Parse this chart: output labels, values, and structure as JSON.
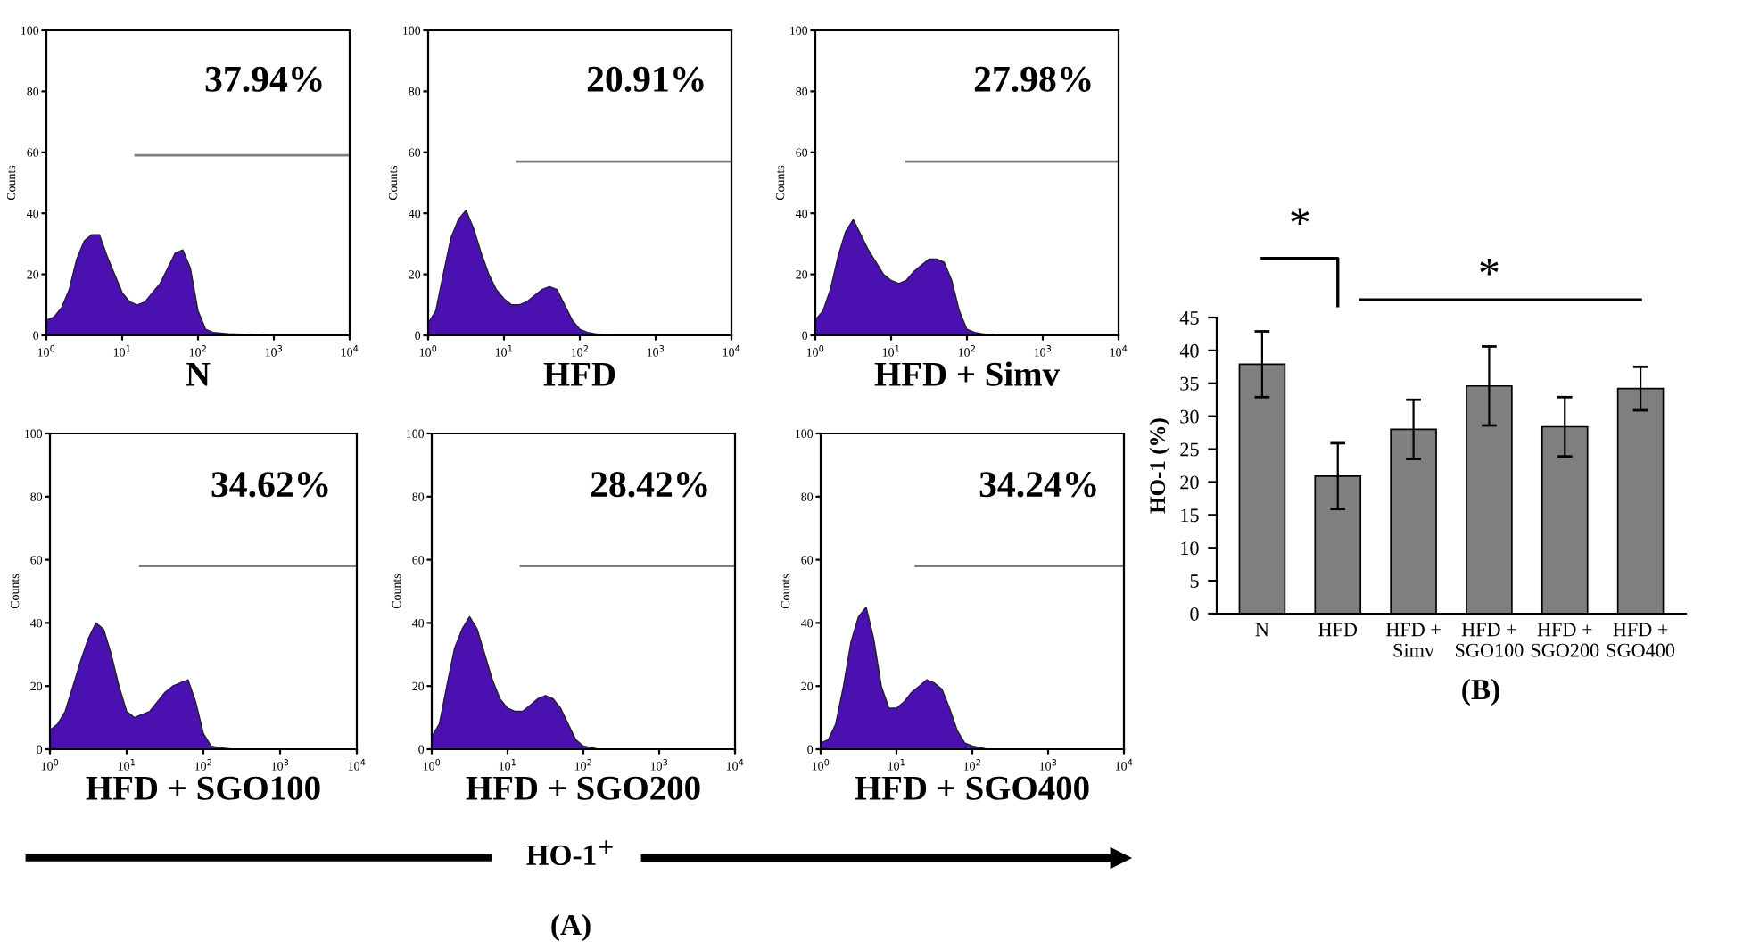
{
  "chart_data": [
    {
      "type": "area",
      "xlabel": "N",
      "ylabel": "Counts",
      "log": "x",
      "xlim": [
        1,
        10000
      ],
      "ylim": [
        0,
        100
      ],
      "xticks": [
        {
          "value": 1,
          "label": "10$^{0}$"
        },
        {
          "value": 10,
          "label": "10$^{1}$"
        },
        {
          "value": 100,
          "label": "10$^{2}$"
        },
        {
          "value": 1000,
          "label": "10$^{3}$"
        },
        {
          "value": 10000,
          "label": "10$^{4}$"
        }
      ],
      "yticks": [
        0,
        20,
        40,
        60,
        80,
        100
      ],
      "annotations": [
        "37.94%"
      ],
      "series": [
        {
          "color": "#4a10b0",
          "x": [
            1,
            1.26,
            1.58,
            2,
            2.51,
            3.16,
            3.98,
            5.01,
            6.31,
            7.94,
            10,
            12.6,
            15.8,
            20,
            25.1,
            31.6,
            39.8,
            50.1,
            63.1,
            79.4,
            100,
            126,
            158,
            251,
            1000,
            10000
          ],
          "values": [
            5,
            6,
            9,
            15,
            25,
            31,
            33,
            33,
            26,
            20,
            14,
            11,
            10,
            11,
            14,
            17,
            22,
            27,
            28,
            22,
            8,
            2,
            1,
            0.5,
            0,
            0
          ]
        },
        {
          "type": "line",
          "color": "#808080",
          "x": [
            15,
            10000
          ],
          "values": [
            59,
            59
          ]
        }
      ]
    },
    {
      "type": "area",
      "xlabel": "HFD",
      "ylabel": "Counts",
      "log": "x",
      "xlim": [
        1,
        10000
      ],
      "ylim": [
        0,
        100
      ],
      "xticks": [
        {
          "value": 1,
          "label": "10$^{0}$"
        },
        {
          "value": 10,
          "label": "10$^{1}$"
        },
        {
          "value": 100,
          "label": "10$^{2}$"
        },
        {
          "value": 1000,
          "label": "10$^{3}$"
        },
        {
          "value": 10000,
          "label": "10$^{4}$"
        }
      ],
      "yticks": [
        0,
        20,
        40,
        60,
        80,
        100
      ],
      "annotations": [
        "20.91%"
      ],
      "series": [
        {
          "color": "#4a10b0",
          "x": [
            1,
            1.26,
            1.58,
            2,
            2.51,
            3.16,
            3.98,
            5.01,
            6.31,
            7.94,
            10,
            12.6,
            15.8,
            20,
            25.1,
            31.6,
            39.8,
            50.1,
            63.1,
            79.4,
            100,
            126,
            158,
            251,
            1000,
            10000
          ],
          "values": [
            4,
            8,
            20,
            32,
            38,
            41,
            35,
            27,
            20,
            15,
            12,
            10,
            10,
            11,
            13,
            15,
            16,
            15,
            10,
            5,
            2,
            1,
            0.5,
            0,
            0,
            0
          ]
        },
        {
          "type": "line",
          "color": "#808080",
          "x": [
            15,
            10000
          ],
          "values": [
            57,
            57
          ]
        }
      ]
    },
    {
      "type": "area",
      "xlabel": "HFD + Simv",
      "ylabel": "Counts",
      "log": "x",
      "xlim": [
        1,
        10000
      ],
      "ylim": [
        0,
        100
      ],
      "xticks": [
        {
          "value": 1,
          "label": "10$^{0}$"
        },
        {
          "value": 10,
          "label": "10$^{1}$"
        },
        {
          "value": 100,
          "label": "10$^{2}$"
        },
        {
          "value": 1000,
          "label": "10$^{3}$"
        },
        {
          "value": 10000,
          "label": "10$^{4}$"
        }
      ],
      "yticks": [
        0,
        20,
        40,
        60,
        80,
        100
      ],
      "annotations": [
        "27.98%"
      ],
      "series": [
        {
          "color": "#4a10b0",
          "x": [
            1,
            1.26,
            1.58,
            2,
            2.51,
            3.16,
            3.98,
            5.01,
            6.31,
            7.94,
            10,
            12.6,
            15.8,
            20,
            25.1,
            31.6,
            39.8,
            50.1,
            63.1,
            79.4,
            100,
            126,
            158,
            251,
            1000,
            10000
          ],
          "values": [
            5,
            8,
            15,
            26,
            34,
            38,
            33,
            28,
            24,
            20,
            18,
            17,
            18,
            21,
            23,
            25,
            25,
            24,
            18,
            8,
            2,
            1,
            0.5,
            0,
            0,
            0
          ]
        },
        {
          "type": "line",
          "color": "#808080",
          "x": [
            16,
            10000
          ],
          "values": [
            57,
            57
          ]
        }
      ]
    },
    {
      "type": "area",
      "xlabel": "HFD + SGO100",
      "ylabel": "Counts",
      "log": "x",
      "xlim": [
        1,
        10000
      ],
      "ylim": [
        0,
        100
      ],
      "xticks": [
        {
          "value": 1,
          "label": "10$^{0}$"
        },
        {
          "value": 10,
          "label": "10$^{1}$"
        },
        {
          "value": 100,
          "label": "10$^{2}$"
        },
        {
          "value": 1000,
          "label": "10$^{3}$"
        },
        {
          "value": 10000,
          "label": "10$^{4}$"
        }
      ],
      "yticks": [
        0,
        20,
        40,
        60,
        80,
        100
      ],
      "annotations": [
        "34.62%"
      ],
      "series": [
        {
          "color": "#4a10b0",
          "x": [
            1,
            1.26,
            1.58,
            2,
            2.51,
            3.16,
            3.98,
            5.01,
            6.31,
            7.94,
            10,
            12.6,
            15.8,
            20,
            25.1,
            31.6,
            39.8,
            50.1,
            63.1,
            79.4,
            100,
            126,
            158,
            251,
            1000,
            10000
          ],
          "values": [
            6,
            8,
            12,
            20,
            28,
            35,
            40,
            38,
            30,
            20,
            12,
            10,
            11,
            12,
            15,
            18,
            20,
            21,
            22,
            15,
            5,
            1,
            0.5,
            0,
            0,
            0
          ]
        },
        {
          "type": "line",
          "color": "#808080",
          "x": [
            15,
            10000
          ],
          "values": [
            58,
            58
          ]
        }
      ]
    },
    {
      "type": "area",
      "xlabel": "HFD + SGO200",
      "ylabel": "Counts",
      "log": "x",
      "xlim": [
        1,
        10000
      ],
      "ylim": [
        0,
        100
      ],
      "xticks": [
        {
          "value": 1,
          "label": "10$^{0}$"
        },
        {
          "value": 10,
          "label": "10$^{1}$"
        },
        {
          "value": 100,
          "label": "10$^{2}$"
        },
        {
          "value": 1000,
          "label": "10$^{3}$"
        },
        {
          "value": 10000,
          "label": "10$^{4}$"
        }
      ],
      "yticks": [
        0,
        20,
        40,
        60,
        80,
        100
      ],
      "annotations": [
        "28.42%"
      ],
      "series": [
        {
          "color": "#4a10b0",
          "x": [
            1,
            1.26,
            1.58,
            2,
            2.51,
            3.16,
            3.98,
            5.01,
            6.31,
            7.94,
            10,
            12.6,
            15.8,
            20,
            25.1,
            31.6,
            39.8,
            50.1,
            63.1,
            79.4,
            100,
            126,
            158,
            251,
            1000,
            10000
          ],
          "values": [
            4,
            8,
            20,
            32,
            38,
            42,
            38,
            30,
            22,
            16,
            13,
            12,
            12,
            14,
            16,
            17,
            16,
            13,
            8,
            3,
            1,
            0.5,
            0,
            0,
            0,
            0
          ]
        },
        {
          "type": "line",
          "color": "#808080",
          "x": [
            15,
            10000
          ],
          "values": [
            58,
            58
          ]
        }
      ]
    },
    {
      "type": "area",
      "xlabel": "HFD + SGO400",
      "ylabel": "Counts",
      "log": "x",
      "xlim": [
        1,
        10000
      ],
      "ylim": [
        0,
        100
      ],
      "xticks": [
        {
          "value": 1,
          "label": "10$^{0}$"
        },
        {
          "value": 10,
          "label": "10$^{1}$"
        },
        {
          "value": 100,
          "label": "10$^{2}$"
        },
        {
          "value": 1000,
          "label": "10$^{3}$"
        },
        {
          "value": 10000,
          "label": "10$^{4}$"
        }
      ],
      "yticks": [
        0,
        20,
        40,
        60,
        80,
        100
      ],
      "annotations": [
        "34.24%",
        "HO-1$^{+}$",
        "(A)"
      ],
      "series": [
        {
          "color": "#4a10b0",
          "x": [
            1,
            1.26,
            1.58,
            2,
            2.51,
            3.16,
            3.98,
            5.01,
            6.31,
            7.94,
            10,
            12.6,
            15.8,
            20,
            25.1,
            31.6,
            39.8,
            50.1,
            63.1,
            79.4,
            100,
            126,
            158,
            251,
            1000,
            10000
          ],
          "values": [
            2,
            3,
            8,
            20,
            34,
            42,
            45,
            35,
            20,
            13,
            13,
            15,
            18,
            20,
            22,
            21,
            19,
            13,
            6,
            2,
            1,
            0.5,
            0,
            0,
            0,
            0
          ]
        },
        {
          "type": "line",
          "color": "#808080",
          "x": [
            18,
            10000
          ],
          "values": [
            58,
            58
          ]
        }
      ]
    },
    {
      "type": "bar",
      "ylabel": "HO-1 (%)",
      "categories": [
        "N",
        "HFD",
        "HFD +\nSimv",
        "HFD +\nSGO100",
        "HFD +\nSGO200",
        "HFD +\nSGO400"
      ],
      "values": [
        37.9,
        20.9,
        28.0,
        34.6,
        28.4,
        34.2
      ],
      "errors": [
        5,
        5,
        4.5,
        6,
        4.5,
        3.3
      ],
      "color": "#7f7f7f",
      "ylim": [
        0,
        45
      ],
      "yticks": [
        0,
        5,
        10,
        15,
        20,
        25,
        30,
        35,
        40,
        45
      ],
      "annotations": [
        "*",
        "*",
        "(B)"
      ]
    }
  ]
}
